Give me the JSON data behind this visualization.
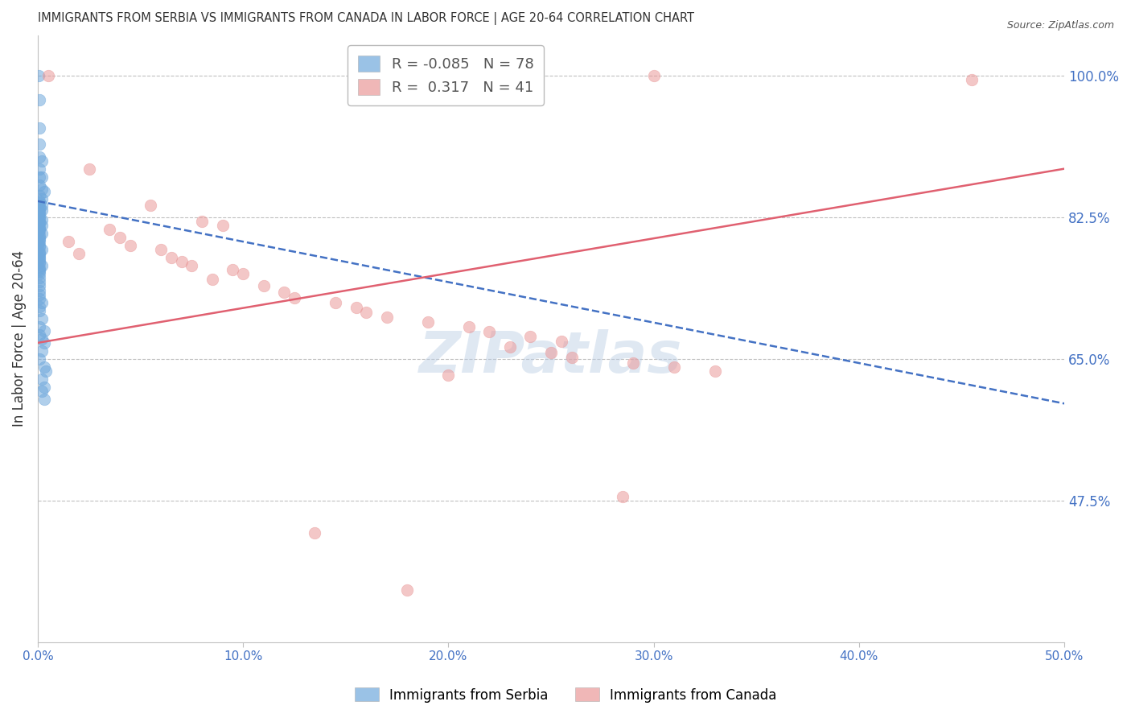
{
  "title": "IMMIGRANTS FROM SERBIA VS IMMIGRANTS FROM CANADA IN LABOR FORCE | AGE 20-64 CORRELATION CHART",
  "source": "Source: ZipAtlas.com",
  "ylabel": "In Labor Force | Age 20-64",
  "ytick_labels": [
    "100.0%",
    "82.5%",
    "65.0%",
    "47.5%"
  ],
  "ytick_values": [
    1.0,
    0.825,
    0.65,
    0.475
  ],
  "xtick_labels": [
    "0.0%",
    "10.0%",
    "20.0%",
    "30.0%",
    "40.0%",
    "50.0%"
  ],
  "xtick_values": [
    0.0,
    0.1,
    0.2,
    0.3,
    0.4,
    0.5
  ],
  "xmin": 0.0,
  "xmax": 0.5,
  "ymin": 0.3,
  "ymax": 1.05,
  "serbia_color": "#6fa8dc",
  "canada_color": "#ea9999",
  "serbia_R": -0.085,
  "serbia_N": 78,
  "canada_R": 0.317,
  "canada_N": 41,
  "serbia_scatter": [
    [
      0.0005,
      1.0
    ],
    [
      0.001,
      0.97
    ],
    [
      0.001,
      0.935
    ],
    [
      0.001,
      0.915
    ],
    [
      0.001,
      0.9
    ],
    [
      0.002,
      0.895
    ],
    [
      0.001,
      0.885
    ],
    [
      0.002,
      0.875
    ],
    [
      0.001,
      0.875
    ],
    [
      0.001,
      0.865
    ],
    [
      0.002,
      0.86
    ],
    [
      0.003,
      0.857
    ],
    [
      0.001,
      0.852
    ],
    [
      0.002,
      0.848
    ],
    [
      0.001,
      0.845
    ],
    [
      0.001,
      0.843
    ],
    [
      0.002,
      0.84
    ],
    [
      0.001,
      0.838
    ],
    [
      0.001,
      0.836
    ],
    [
      0.002,
      0.834
    ],
    [
      0.001,
      0.832
    ],
    [
      0.001,
      0.83
    ],
    [
      0.0005,
      0.828
    ],
    [
      0.001,
      0.826
    ],
    [
      0.001,
      0.824
    ],
    [
      0.002,
      0.822
    ],
    [
      0.001,
      0.82
    ],
    [
      0.001,
      0.818
    ],
    [
      0.0005,
      0.817
    ],
    [
      0.002,
      0.815
    ],
    [
      0.001,
      0.813
    ],
    [
      0.001,
      0.811
    ],
    [
      0.001,
      0.809
    ],
    [
      0.0005,
      0.807
    ],
    [
      0.002,
      0.805
    ],
    [
      0.001,
      0.803
    ],
    [
      0.001,
      0.8
    ],
    [
      0.001,
      0.798
    ],
    [
      0.001,
      0.795
    ],
    [
      0.0005,
      0.793
    ],
    [
      0.001,
      0.79
    ],
    [
      0.001,
      0.788
    ],
    [
      0.002,
      0.785
    ],
    [
      0.001,
      0.782
    ],
    [
      0.001,
      0.78
    ],
    [
      0.001,
      0.778
    ],
    [
      0.001,
      0.775
    ],
    [
      0.001,
      0.773
    ],
    [
      0.001,
      0.77
    ],
    [
      0.001,
      0.768
    ],
    [
      0.002,
      0.765
    ],
    [
      0.001,
      0.762
    ],
    [
      0.001,
      0.76
    ],
    [
      0.001,
      0.758
    ],
    [
      0.001,
      0.755
    ],
    [
      0.001,
      0.75
    ],
    [
      0.001,
      0.745
    ],
    [
      0.001,
      0.74
    ],
    [
      0.001,
      0.735
    ],
    [
      0.001,
      0.73
    ],
    [
      0.001,
      0.725
    ],
    [
      0.002,
      0.72
    ],
    [
      0.001,
      0.715
    ],
    [
      0.001,
      0.71
    ],
    [
      0.002,
      0.7
    ],
    [
      0.001,
      0.69
    ],
    [
      0.003,
      0.685
    ],
    [
      0.001,
      0.68
    ],
    [
      0.002,
      0.675
    ],
    [
      0.003,
      0.67
    ],
    [
      0.002,
      0.66
    ],
    [
      0.001,
      0.65
    ],
    [
      0.003,
      0.64
    ],
    [
      0.004,
      0.635
    ],
    [
      0.002,
      0.625
    ],
    [
      0.003,
      0.615
    ],
    [
      0.002,
      0.61
    ],
    [
      0.003,
      0.6
    ]
  ],
  "canada_scatter": [
    [
      0.005,
      1.0
    ],
    [
      0.3,
      1.0
    ],
    [
      0.455,
      0.995
    ],
    [
      0.025,
      0.885
    ],
    [
      0.055,
      0.84
    ],
    [
      0.08,
      0.82
    ],
    [
      0.09,
      0.815
    ],
    [
      0.035,
      0.81
    ],
    [
      0.04,
      0.8
    ],
    [
      0.015,
      0.795
    ],
    [
      0.045,
      0.79
    ],
    [
      0.06,
      0.785
    ],
    [
      0.02,
      0.78
    ],
    [
      0.065,
      0.775
    ],
    [
      0.07,
      0.77
    ],
    [
      0.075,
      0.765
    ],
    [
      0.095,
      0.76
    ],
    [
      0.1,
      0.755
    ],
    [
      0.085,
      0.748
    ],
    [
      0.11,
      0.74
    ],
    [
      0.12,
      0.733
    ],
    [
      0.125,
      0.726
    ],
    [
      0.145,
      0.72
    ],
    [
      0.155,
      0.714
    ],
    [
      0.16,
      0.708
    ],
    [
      0.17,
      0.702
    ],
    [
      0.19,
      0.696
    ],
    [
      0.21,
      0.69
    ],
    [
      0.22,
      0.684
    ],
    [
      0.24,
      0.678
    ],
    [
      0.255,
      0.672
    ],
    [
      0.23,
      0.665
    ],
    [
      0.25,
      0.658
    ],
    [
      0.26,
      0.652
    ],
    [
      0.29,
      0.645
    ],
    [
      0.31,
      0.64
    ],
    [
      0.33,
      0.635
    ],
    [
      0.285,
      0.48
    ],
    [
      0.18,
      0.365
    ],
    [
      0.135,
      0.435
    ],
    [
      0.2,
      0.63
    ]
  ],
  "serbia_trend_x": [
    0.0,
    0.5
  ],
  "serbia_trend_y": [
    0.845,
    0.595
  ],
  "canada_trend_x": [
    0.0,
    0.5
  ],
  "canada_trend_y": [
    0.67,
    0.885
  ],
  "watermark": "ZIPatlas",
  "background_color": "#ffffff",
  "grid_color": "#c0c0c0",
  "title_color": "#333333",
  "right_axis_color": "#4472c4",
  "legend_serbia_label": "Immigrants from Serbia",
  "legend_canada_label": "Immigrants from Canada",
  "serbia_trend_color": "#4472c4",
  "canada_trend_color": "#e06070"
}
